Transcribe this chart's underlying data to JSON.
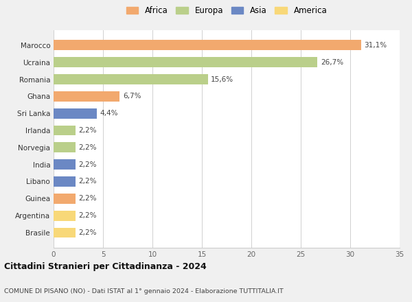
{
  "categories": [
    "Brasile",
    "Argentina",
    "Guinea",
    "Libano",
    "India",
    "Norvegia",
    "Irlanda",
    "Sri Lanka",
    "Ghana",
    "Romania",
    "Ucraina",
    "Marocco"
  ],
  "values": [
    2.2,
    2.2,
    2.2,
    2.2,
    2.2,
    2.2,
    2.2,
    4.4,
    6.7,
    15.6,
    26.7,
    31.1
  ],
  "labels": [
    "2,2%",
    "2,2%",
    "2,2%",
    "2,2%",
    "2,2%",
    "2,2%",
    "2,2%",
    "4,4%",
    "6,7%",
    "15,6%",
    "26,7%",
    "31,1%"
  ],
  "continents": [
    "America",
    "America",
    "Africa",
    "Asia",
    "Asia",
    "Europa",
    "Europa",
    "Asia",
    "Africa",
    "Europa",
    "Europa",
    "Africa"
  ],
  "colors": {
    "Africa": "#F2A96E",
    "Europa": "#BACF8A",
    "Asia": "#6B88C4",
    "America": "#F8D878"
  },
  "legend_order": [
    "Africa",
    "Europa",
    "Asia",
    "America"
  ],
  "xlim": [
    0,
    35
  ],
  "xticks": [
    0,
    5,
    10,
    15,
    20,
    25,
    30,
    35
  ],
  "title": "Cittadini Stranieri per Cittadinanza - 2024",
  "subtitle": "COMUNE DI PISANO (NO) - Dati ISTAT al 1° gennaio 2024 - Elaborazione TUTTITALIA.IT",
  "background_color": "#f0f0f0",
  "bar_background": "#ffffff",
  "bar_height": 0.6
}
